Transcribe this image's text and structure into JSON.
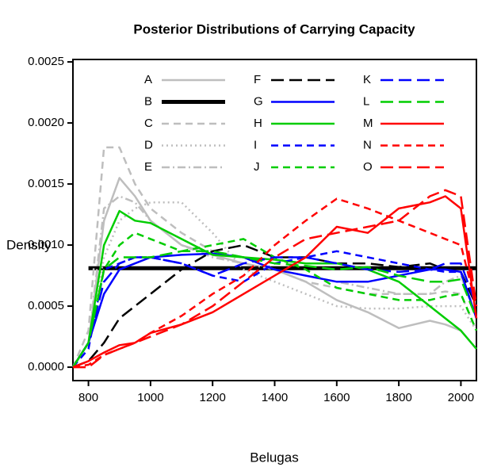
{
  "chart_data": {
    "type": "line",
    "title": "Posterior Distributions of Carrying Capacity",
    "x_label": "Belugas",
    "y_label": "Density",
    "x": [
      750,
      800,
      850,
      900,
      950,
      1000,
      1100,
      1200,
      1300,
      1400,
      1500,
      1600,
      1700,
      1800,
      1900,
      1950,
      2000,
      2050
    ],
    "xlim": [
      750,
      2050
    ],
    "xticks": [
      800,
      1000,
      1200,
      1400,
      1600,
      1800,
      2000
    ],
    "ylim": [
      -0.00011,
      0.00252
    ],
    "yticks": [
      {
        "value": 0,
        "label": "0.0000"
      },
      0.0005,
      {
        "value": 0.001,
        "label": "0.0010"
      },
      0.0015,
      {
        "value": 0.002,
        "label": "0.0020"
      },
      0.0025
    ],
    "series": [
      {
        "name": "A",
        "color": "#bebebe",
        "style": "solid",
        "values": [
          0,
          0.0002,
          0.0012,
          0.00155,
          0.0014,
          0.0012,
          0.001,
          0.00092,
          0.00085,
          0.0008,
          0.0007,
          0.00055,
          0.00045,
          0.00032,
          0.00038,
          0.00035,
          0.0003,
          0.00015
        ]
      },
      {
        "name": "B",
        "color": "#000000",
        "style": "solid",
        "bold": true,
        "values": [
          null,
          0.00081,
          0.00081,
          0.00081,
          0.00081,
          0.00081,
          0.00081,
          0.00081,
          0.00081,
          0.00081,
          0.00081,
          0.00081,
          0.00081,
          0.00081,
          0.00081,
          0.00081,
          0.00081,
          0.00081
        ]
      },
      {
        "name": "C",
        "color": "#bebebe",
        "style": "dashed",
        "values": [
          0,
          0.0003,
          0.0018,
          0.0018,
          0.0015,
          0.0013,
          0.0011,
          0.00095,
          0.0009,
          0.0008,
          0.0007,
          0.00065,
          0.0006,
          0.0006,
          0.0006,
          0.00062,
          0.0006,
          0.0003
        ]
      },
      {
        "name": "D",
        "color": "#bebebe",
        "style": "dotted",
        "values": [
          0,
          0.0002,
          0.0009,
          0.0012,
          0.0013,
          0.00135,
          0.00135,
          0.0011,
          0.0008,
          0.0007,
          0.0006,
          0.0005,
          0.00048,
          0.00048,
          0.0005,
          0.0005,
          0.0005,
          0.0003
        ]
      },
      {
        "name": "E",
        "color": "#bebebe",
        "style": "dashdot",
        "values": [
          0,
          0.0002,
          0.0013,
          0.0014,
          0.00135,
          0.0012,
          0.001,
          0.0009,
          0.00085,
          0.0008,
          0.00075,
          0.0007,
          0.00065,
          0.0006,
          0.0006,
          0.0007,
          0.00075,
          0.0004
        ]
      },
      {
        "name": "F",
        "color": "#000000",
        "style": "longdash",
        "values": [
          0,
          5e-05,
          0.0002,
          0.0004,
          0.0005,
          0.0006,
          0.0008,
          0.00095,
          0.001,
          0.0009,
          0.0009,
          0.00085,
          0.00085,
          0.00082,
          0.00085,
          0.0008,
          0.00078,
          0.0005
        ]
      },
      {
        "name": "G",
        "color": "#0000ff",
        "style": "solid",
        "values": [
          0,
          0.0002,
          0.0006,
          0.0008,
          0.00085,
          0.0009,
          0.00092,
          0.00093,
          0.0009,
          0.0008,
          0.00075,
          0.0007,
          0.0007,
          0.00075,
          0.0008,
          0.0008,
          0.00078,
          0.0004
        ]
      },
      {
        "name": "H",
        "color": "#00cd00",
        "style": "solid",
        "values": [
          0,
          0.0002,
          0.001,
          0.00128,
          0.0012,
          0.00118,
          0.00105,
          0.00092,
          0.0009,
          0.00088,
          0.00085,
          0.00085,
          0.0008,
          0.0007,
          0.0005,
          0.0004,
          0.0003,
          0.00015
        ]
      },
      {
        "name": "I",
        "color": "#0000ff",
        "style": "dashed",
        "values": [
          0,
          0.00015,
          0.0008,
          0.00085,
          0.0009,
          0.0009,
          0.00085,
          0.00075,
          0.0007,
          0.00085,
          0.0009,
          0.00095,
          0.0009,
          0.00085,
          0.0008,
          0.00078,
          0.00078,
          0.0004
        ]
      },
      {
        "name": "J",
        "color": "#00cd00",
        "style": "dashed",
        "values": [
          0,
          0.0002,
          0.0008,
          0.001,
          0.0011,
          0.00105,
          0.00095,
          0.001,
          0.00105,
          0.0009,
          0.0008,
          0.00065,
          0.0006,
          0.00055,
          0.00055,
          0.00058,
          0.0006,
          0.0003
        ]
      },
      {
        "name": "K",
        "color": "#0000ff",
        "style": "longdash",
        "values": [
          0,
          0.0002,
          0.0007,
          0.00085,
          0.0009,
          0.0009,
          0.00085,
          0.00075,
          0.00085,
          0.0009,
          0.0009,
          0.00085,
          0.0008,
          0.00078,
          0.0008,
          0.00085,
          0.00085,
          0.0005
        ]
      },
      {
        "name": "L",
        "color": "#00cd00",
        "style": "longdash",
        "values": [
          0,
          0.0002,
          0.0008,
          0.0009,
          0.0009,
          0.0009,
          0.00095,
          0.00095,
          0.0009,
          0.00085,
          0.00083,
          0.0008,
          0.00082,
          0.00075,
          0.0007,
          0.0007,
          0.00072,
          0.0004
        ]
      },
      {
        "name": "M",
        "color": "#ff0000",
        "style": "solid",
        "values": [
          0,
          5e-05,
          0.00012,
          0.00018,
          0.0002,
          0.00028,
          0.00035,
          0.00045,
          0.0006,
          0.00075,
          0.0009,
          0.00115,
          0.0011,
          0.0013,
          0.00135,
          0.0014,
          0.0013,
          0.0004
        ]
      },
      {
        "name": "N",
        "color": "#ff0000",
        "style": "dashed",
        "values": [
          0,
          2e-05,
          0.0001,
          0.00015,
          0.0002,
          0.00028,
          0.00042,
          0.0006,
          0.00075,
          0.001,
          0.0012,
          0.00138,
          0.0013,
          0.0012,
          0.0011,
          0.00105,
          0.001,
          0.0005
        ]
      },
      {
        "name": "O",
        "color": "#ff0000",
        "style": "longdash",
        "values": [
          0,
          0,
          0.0001,
          0.00015,
          0.0002,
          0.00025,
          0.00035,
          0.0005,
          0.0007,
          0.0009,
          0.00105,
          0.0011,
          0.00115,
          0.0012,
          0.0014,
          0.00145,
          0.0014,
          0.0005
        ]
      }
    ]
  }
}
